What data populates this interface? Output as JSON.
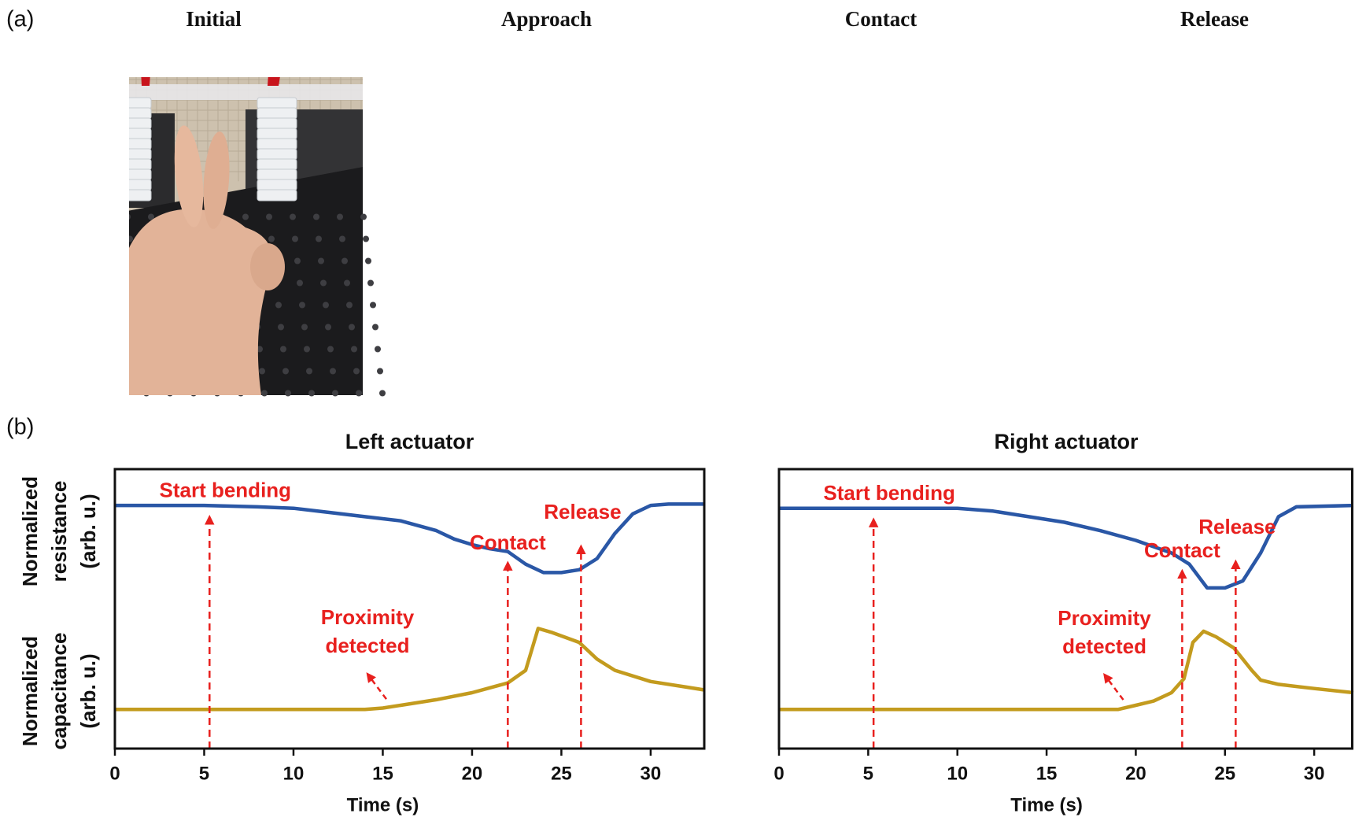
{
  "panel_a": {
    "label": "(a)",
    "titles": [
      "Initial",
      "Approach",
      "Contact",
      "Release"
    ]
  },
  "panel_b": {
    "label": "(b)"
  },
  "chart_data": [
    {
      "type": "line",
      "title": "Left actuator",
      "xlabel": "Time (s)",
      "ylabels": [
        [
          "Normalized",
          "resistance",
          "(arb. u.)"
        ],
        [
          "Normalized",
          "capacitance",
          "(arb. u.)"
        ]
      ],
      "xlim": [
        0,
        33
      ],
      "xticks": [
        0,
        5,
        10,
        15,
        20,
        25,
        30
      ],
      "ylim": [
        0,
        100
      ],
      "series": [
        {
          "color": "#2a57a6",
          "x": [
            0,
            5,
            8,
            10,
            12,
            14,
            16,
            18,
            19,
            20,
            21,
            22,
            23,
            24,
            25,
            26,
            27,
            28,
            29,
            30,
            31,
            33
          ],
          "values": [
            87,
            87,
            86.5,
            86,
            84.5,
            83,
            81.5,
            78,
            75,
            73,
            71.5,
            70.5,
            66,
            63,
            63,
            64,
            68,
            77,
            84,
            87,
            87.5,
            87.5
          ]
        },
        {
          "color": "#c39b1e",
          "x": [
            0,
            14,
            15,
            16,
            18,
            20,
            22,
            23,
            23.7,
            24.5,
            26,
            27,
            28,
            30,
            32,
            33
          ],
          "values": [
            14,
            14,
            14.5,
            15.5,
            17.5,
            20,
            23.5,
            28,
            43,
            41.5,
            38,
            32,
            28,
            24,
            22,
            21
          ]
        }
      ],
      "annotations": [
        {
          "text": [
            "Start bending"
          ],
          "x": 5.3
        },
        {
          "text": [
            "Proximity",
            "detected"
          ],
          "x": 15.2
        },
        {
          "text": [
            "Contact"
          ],
          "x": 22
        },
        {
          "text": [
            "Release"
          ],
          "x": 26.1
        }
      ]
    },
    {
      "type": "line",
      "title": "Right actuator",
      "xlabel": "Time (s)",
      "xlim": [
        0,
        32.2
      ],
      "xticks": [
        0,
        5,
        10,
        15,
        20,
        25,
        30
      ],
      "ylim": [
        0,
        100
      ],
      "series": [
        {
          "color": "#2a57a6",
          "x": [
            0,
            10,
            12,
            14,
            16,
            18,
            20,
            22,
            23,
            24,
            25,
            26,
            27,
            28,
            29,
            32.2
          ],
          "values": [
            86,
            86,
            85,
            83,
            81,
            78,
            74.5,
            70,
            66,
            57.5,
            57.5,
            60,
            70,
            83,
            86.5,
            87
          ]
        },
        {
          "color": "#c39b1e",
          "x": [
            0,
            19,
            20,
            21,
            22,
            22.7,
            23.2,
            23.8,
            24.5,
            25.5,
            26.5,
            27,
            28,
            30,
            32.2
          ],
          "values": [
            14,
            14,
            15.5,
            17,
            20,
            25,
            38,
            42,
            40,
            36,
            28,
            24.5,
            23,
            21.5,
            20
          ]
        }
      ],
      "annotations": [
        {
          "text": [
            "Start bending"
          ],
          "x": 5.3
        },
        {
          "text": [
            "Proximity",
            "detected"
          ],
          "x": 19.3
        },
        {
          "text": [
            "Contact"
          ],
          "x": 22.6
        },
        {
          "text": [
            "Release"
          ],
          "x": 25.6
        }
      ]
    }
  ]
}
